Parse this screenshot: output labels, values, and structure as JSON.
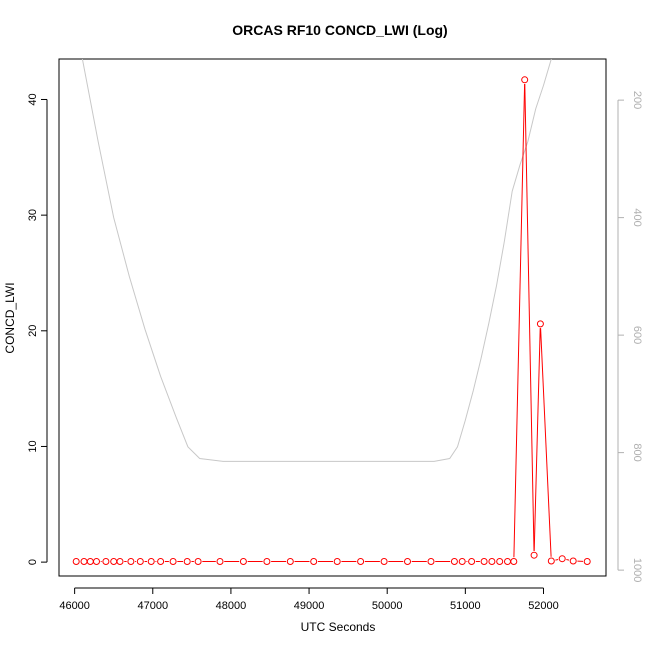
{
  "chart_data": {
    "type": "line",
    "title": "ORCAS RF10 CONCD_LWI (Log)",
    "xlabel": "UTC Seconds",
    "ylabel": "CONCD_LWI",
    "xlim": [
      45800,
      52800
    ],
    "ylim": [
      -1.2,
      43.5
    ],
    "y2lim": [
      1010,
      130
    ],
    "x_ticks": [
      "46000",
      "47000",
      "48000",
      "49000",
      "50000",
      "51000",
      "52000"
    ],
    "y_ticks": [
      "0",
      "10",
      "20",
      "30",
      "40"
    ],
    "y2_ticks": [
      "200",
      "400",
      "600",
      "800",
      "1000"
    ],
    "grid": false,
    "colors": {
      "primary": "#ff0000",
      "secondary": "#c8c8c8"
    },
    "series": [
      {
        "style": "points-and-lines",
        "x": [
          46020,
          46120,
          46200,
          46280,
          46400,
          46500,
          46580,
          46720,
          46840,
          46980,
          47100,
          47260,
          47440,
          47580,
          47860,
          48160,
          48460,
          48760,
          49060,
          49360,
          49660,
          49960,
          50260,
          50560,
          50860,
          50960,
          51080,
          51240,
          51340,
          51440,
          51540,
          51620,
          51760,
          51880,
          51960,
          52100,
          52240,
          52380,
          52560
        ],
        "y": [
          0.05,
          0.05,
          0.05,
          0.05,
          0.05,
          0.05,
          0.05,
          0.05,
          0.05,
          0.05,
          0.05,
          0.05,
          0.05,
          0.05,
          0.05,
          0.05,
          0.05,
          0.05,
          0.05,
          0.05,
          0.05,
          0.05,
          0.05,
          0.05,
          0.05,
          0.05,
          0.05,
          0.05,
          0.05,
          0.05,
          0.05,
          0.05,
          41.7,
          0.6,
          20.6,
          0.1,
          0.3,
          0.1,
          0.05
        ]
      },
      {
        "style": "line",
        "axis": "right",
        "x": [
          46100,
          46300,
          46500,
          46700,
          46900,
          47100,
          47300,
          47450,
          47600,
          47900,
          48200,
          48600,
          49000,
          49500,
          50000,
          50600,
          50800,
          50900,
          51000,
          51100,
          51200,
          51300,
          51400,
          51500,
          51600,
          51700,
          51800,
          51900,
          52000,
          52100
        ],
        "y": [
          130,
          270,
          400,
          500,
          590,
          670,
          740,
          790,
          810,
          815,
          815,
          815,
          815,
          815,
          815,
          815,
          810,
          790,
          745,
          695,
          640,
          580,
          515,
          440,
          355,
          310,
          270,
          215,
          175,
          130
        ]
      }
    ]
  }
}
